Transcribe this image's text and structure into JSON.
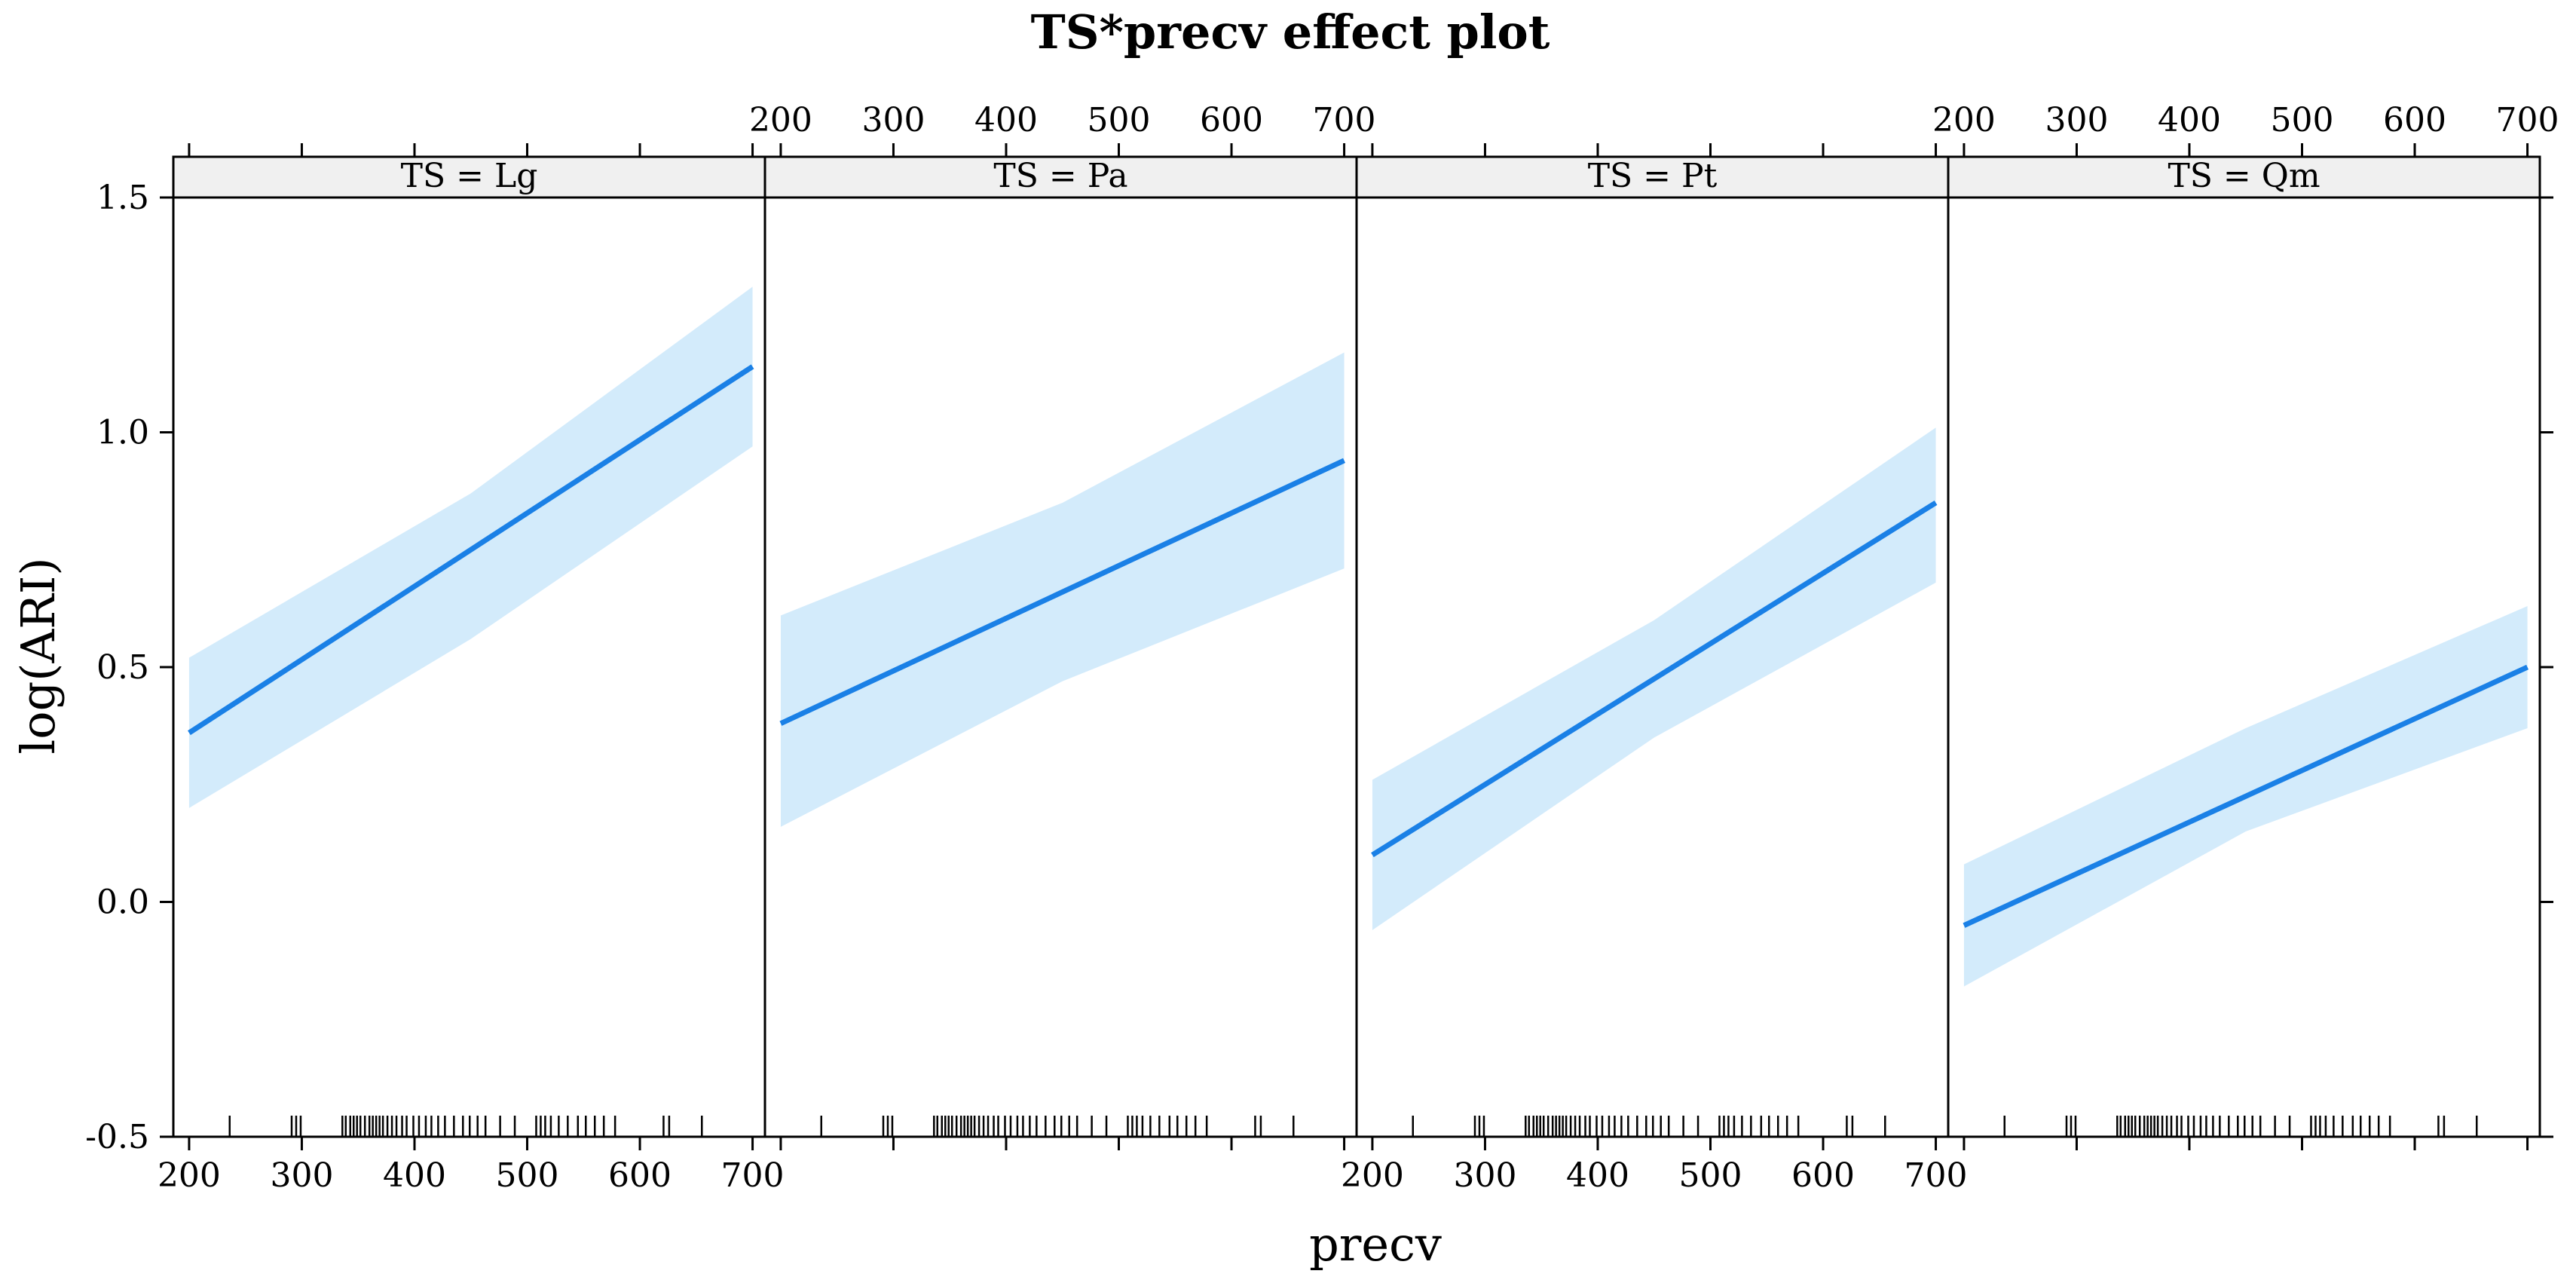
{
  "chart_data": {
    "type": "line",
    "title": "TS*precv effect plot",
    "xlabel": "precv",
    "ylabel": "log(ARI)",
    "xlim": [
      186,
      711
    ],
    "ylim": [
      -0.5,
      1.5
    ],
    "x_ticks": [
      200,
      300,
      400,
      500,
      600,
      700
    ],
    "y_ticks": [
      -0.5,
      0.0,
      0.5,
      1.0,
      1.5
    ],
    "y_tick_labels": [
      "-0.5",
      "0.0",
      "0.5",
      "1.0",
      "1.5"
    ],
    "grid": false,
    "colors": {
      "line": "#1a80e6",
      "band": "#d3ebfb",
      "strip": "#f0f0f0"
    },
    "panels": [
      {
        "label": "TS = Lg",
        "fit": [
          {
            "x": 200,
            "y": 0.36
          },
          {
            "x": 700,
            "y": 1.14
          }
        ],
        "lower": [
          {
            "x": 200,
            "y": 0.2
          },
          {
            "x": 450,
            "y": 0.56
          },
          {
            "x": 700,
            "y": 0.97
          }
        ],
        "upper": [
          {
            "x": 200,
            "y": 0.52
          },
          {
            "x": 450,
            "y": 0.87
          },
          {
            "x": 700,
            "y": 1.31
          }
        ]
      },
      {
        "label": "TS = Pa",
        "fit": [
          {
            "x": 200,
            "y": 0.38
          },
          {
            "x": 700,
            "y": 0.94
          }
        ],
        "lower": [
          {
            "x": 200,
            "y": 0.16
          },
          {
            "x": 450,
            "y": 0.47
          },
          {
            "x": 700,
            "y": 0.71
          }
        ],
        "upper": [
          {
            "x": 200,
            "y": 0.61
          },
          {
            "x": 450,
            "y": 0.85
          },
          {
            "x": 700,
            "y": 1.17
          }
        ]
      },
      {
        "label": "TS = Pt",
        "fit": [
          {
            "x": 200,
            "y": 0.1
          },
          {
            "x": 700,
            "y": 0.85
          }
        ],
        "lower": [
          {
            "x": 200,
            "y": -0.06
          },
          {
            "x": 450,
            "y": 0.35
          },
          {
            "x": 700,
            "y": 0.68
          }
        ],
        "upper": [
          {
            "x": 200,
            "y": 0.26
          },
          {
            "x": 450,
            "y": 0.6
          },
          {
            "x": 700,
            "y": 1.01
          }
        ]
      },
      {
        "label": "TS = Qm",
        "fit": [
          {
            "x": 200,
            "y": -0.05
          },
          {
            "x": 700,
            "y": 0.5
          }
        ],
        "lower": [
          {
            "x": 200,
            "y": -0.18
          },
          {
            "x": 450,
            "y": 0.15
          },
          {
            "x": 700,
            "y": 0.37
          }
        ],
        "upper": [
          {
            "x": 200,
            "y": 0.08
          },
          {
            "x": 450,
            "y": 0.37
          },
          {
            "x": 700,
            "y": 0.63
          }
        ]
      }
    ],
    "rug_precv": [
      236,
      291,
      295,
      299,
      336,
      339,
      343,
      346,
      349,
      352,
      356,
      360,
      363,
      366,
      369,
      372,
      376,
      380,
      384,
      389,
      393,
      399,
      404,
      410,
      415,
      421,
      427,
      435,
      443,
      449,
      456,
      463,
      476,
      489,
      508,
      512,
      516,
      521,
      528,
      536,
      545,
      552,
      560,
      568,
      578,
      621,
      626,
      655
    ]
  }
}
